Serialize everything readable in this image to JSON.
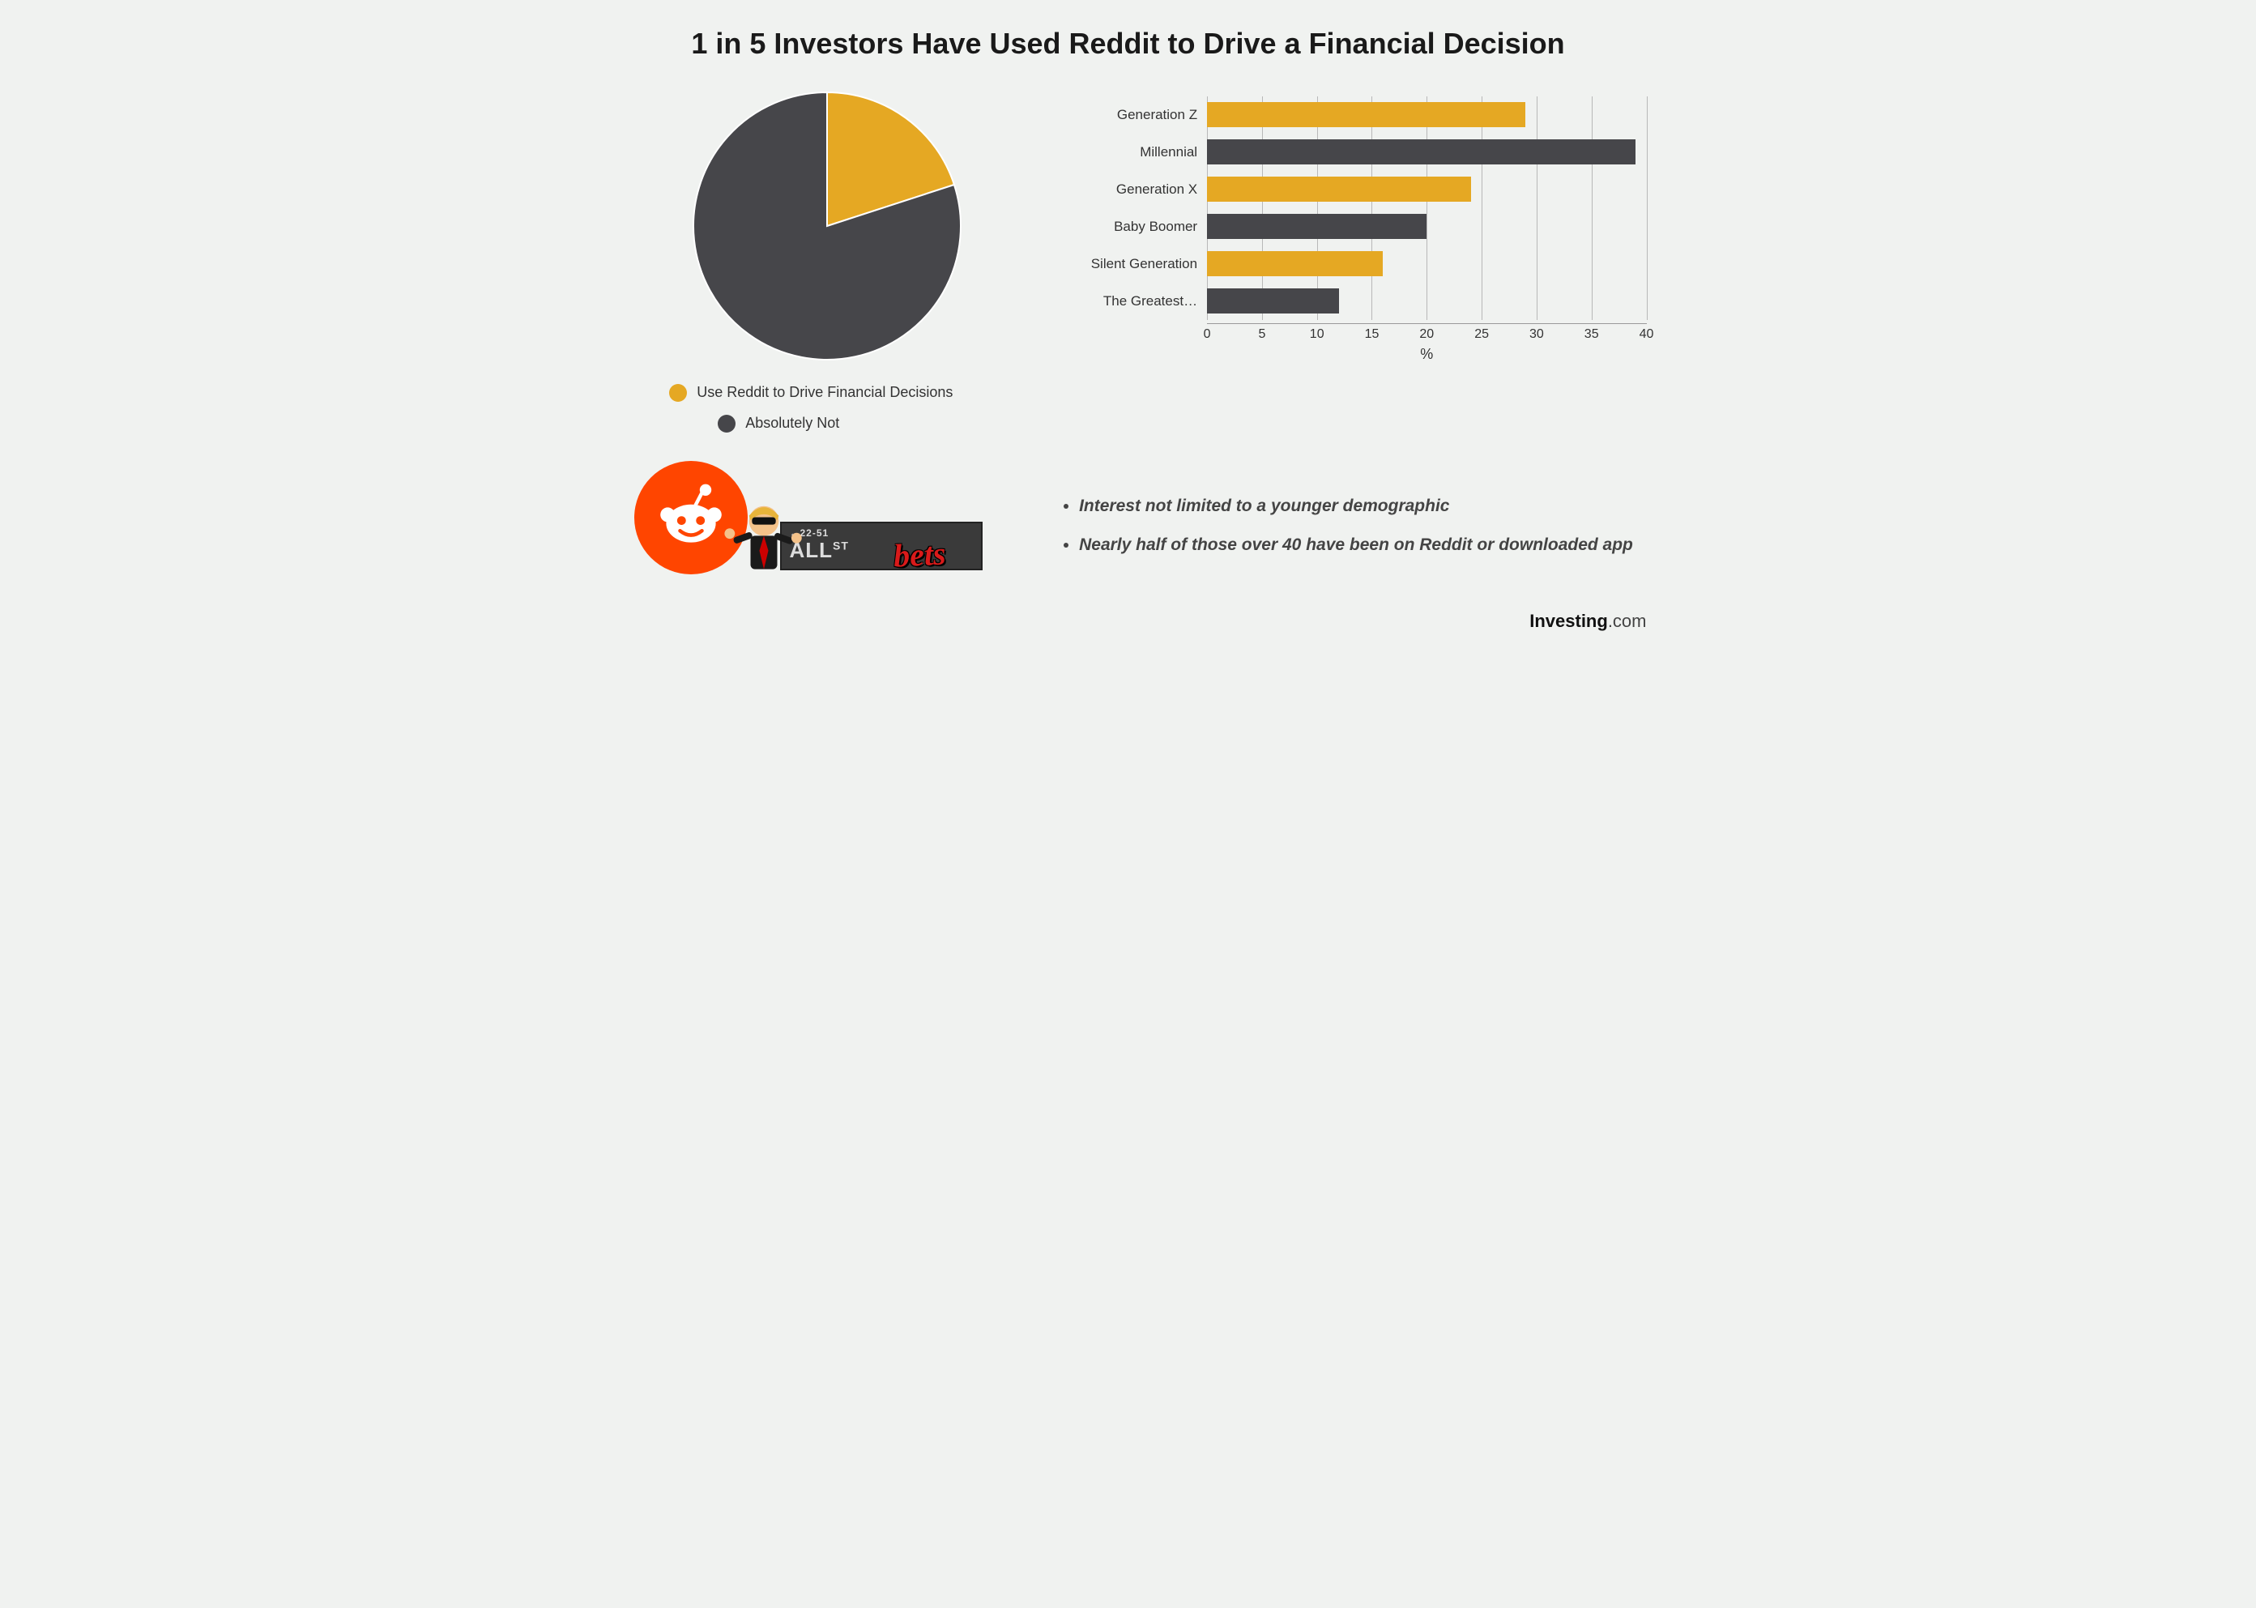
{
  "title": "1 in 5 Investors Have Used Reddit to Drive a Financial Decision",
  "pie": {
    "type": "pie",
    "radius": 165,
    "stroke": "#ffffff",
    "stroke_width": 2,
    "background_color": "#f0f2f0",
    "slices": [
      {
        "label": "Use Reddit to Drive Financial Decisions",
        "value": 20,
        "color": "#e5a823"
      },
      {
        "label": "Absolutely Not",
        "value": 80,
        "color": "#46464a"
      }
    ],
    "start_angle_deg": -90
  },
  "bar": {
    "type": "bar-horizontal",
    "x_unit": "%",
    "xlim": [
      0,
      40
    ],
    "xtick_step": 5,
    "xticks": [
      0,
      5,
      10,
      15,
      20,
      25,
      30,
      35,
      40
    ],
    "grid_color": "#b8b8b8",
    "label_fontsize": 17,
    "tick_fontsize": 16,
    "bar_height_ratio": 0.68,
    "alt_colors": [
      "#e5a823",
      "#46464a"
    ],
    "categories": [
      {
        "label": "Generation Z",
        "value": 29,
        "color": "#e5a823"
      },
      {
        "label": "Millennial",
        "value": 39,
        "color": "#46464a"
      },
      {
        "label": "Generation X",
        "value": 24,
        "color": "#e5a823"
      },
      {
        "label": "Baby Boomer",
        "value": 20,
        "color": "#46464a"
      },
      {
        "label": "Silent Generation",
        "value": 16,
        "color": "#e5a823"
      },
      {
        "label": "The Greatest…",
        "value": 12,
        "color": "#46464a"
      }
    ]
  },
  "bullets": [
    "Interest not limited to a younger demographic",
    "Nearly half of those over 40 have been on Reddit or downloaded app"
  ],
  "logos": {
    "reddit_color": "#ff4500",
    "wsb_sign_text": "ALL",
    "wsb_sign_small": "←22-51",
    "wsb_sign_suffix": "ST",
    "wsb_overlay": "bets"
  },
  "brand": {
    "bold": "Investing",
    "suffix": ".com"
  },
  "colors": {
    "background": "#f0f2f0",
    "text": "#333333",
    "title": "#1a1a1a"
  }
}
